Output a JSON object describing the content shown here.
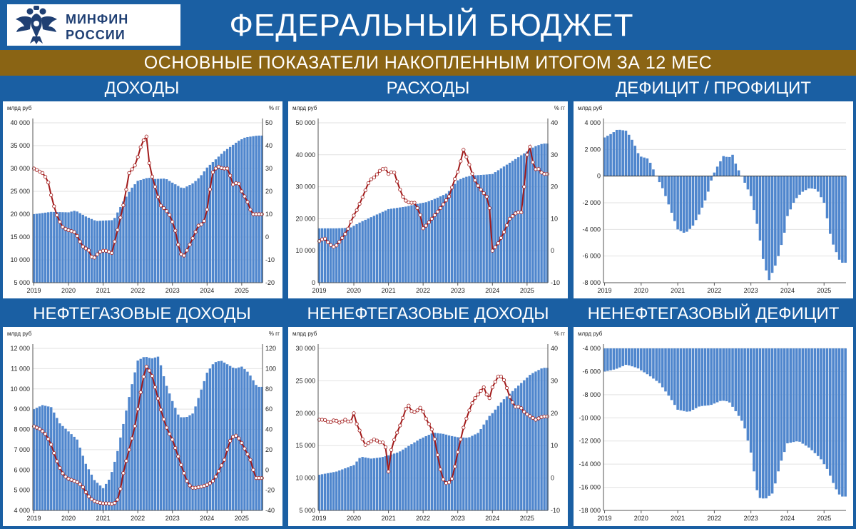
{
  "header": {
    "logo_text_line1": "МИНФИН",
    "logo_text_line2": "РОССИИ",
    "logo_icon": "double-headed-eagle-emblem",
    "title": "ФЕДЕРАЛЬНЫЙ БЮДЖЕТ",
    "subtitle": "ОСНОВНЫЕ ПОКАЗАТЕЛИ НАКОПЛЕННЫМ ИТОГОМ ЗА 12 МЕС"
  },
  "colors": {
    "background": "#1a5fa3",
    "subtitle_bar": "#8a6414",
    "bar": "#4f86cd",
    "line": "#a11a1a",
    "marker_fill": "#ffffff"
  },
  "chart_data": [
    {
      "id": "revenue",
      "type": "bar+line",
      "title": "ДОХОДЫ",
      "ylabel": "млрд руб",
      "y2label": "% гг",
      "ylim": [
        5000,
        40000
      ],
      "yticks": [
        5000,
        10000,
        15000,
        20000,
        25000,
        30000,
        35000,
        40000
      ],
      "y2lim": [
        -20,
        50
      ],
      "y2ticks": [
        -20,
        -10,
        0,
        10,
        20,
        30,
        40,
        50
      ],
      "x_start": 2019.0,
      "x_end": 2025.6,
      "year_labels": [
        "2019",
        "2020",
        "2021",
        "2022",
        "2023",
        "2024",
        "2025"
      ],
      "bars": {
        "t": [
          2019.0,
          2019.5,
          2020.0,
          2020.2,
          2020.5,
          2020.8,
          2021.0,
          2021.3,
          2021.6,
          2021.8,
          2022.0,
          2022.3,
          2022.5,
          2022.8,
          2023.0,
          2023.3,
          2023.6,
          2023.8,
          2024.0,
          2024.5,
          2024.9,
          2025.1,
          2025.45
        ],
        "v": [
          20000,
          20500,
          20400,
          20800,
          19500,
          18500,
          18600,
          18700,
          23000,
          25500,
          27300,
          28000,
          27700,
          27800,
          26900,
          25600,
          26800,
          28200,
          30200,
          33800,
          36000,
          36800,
          37200
        ]
      },
      "line": {
        "t": [
          2019.0,
          2019.25,
          2019.4,
          2019.55,
          2019.7,
          2019.85,
          2020.0,
          2020.2,
          2020.4,
          2020.6,
          2020.7,
          2020.8,
          2020.95,
          2021.1,
          2021.25,
          2021.4,
          2021.6,
          2021.75,
          2021.95,
          2022.05,
          2022.15,
          2022.25,
          2022.35,
          2022.5,
          2022.65,
          2022.8,
          2022.95,
          2023.1,
          2023.2,
          2023.3,
          2023.45,
          2023.6,
          2023.75,
          2023.9,
          2024.0,
          2024.15,
          2024.3,
          2024.45,
          2024.6,
          2024.75,
          2024.9,
          2025.0,
          2025.15,
          2025.3,
          2025.45
        ],
        "v": [
          30,
          28,
          25,
          15,
          8,
          4,
          3,
          2,
          -4,
          -6,
          -10,
          -8,
          -6,
          -6,
          -7,
          2,
          15,
          28,
          32,
          38,
          42,
          44,
          30,
          22,
          14,
          12,
          9,
          2,
          -6,
          -9,
          -5,
          0,
          5,
          6,
          12,
          28,
          31,
          30,
          30,
          23,
          24,
          20,
          16,
          10,
          10
        ]
      }
    },
    {
      "id": "expenditure",
      "type": "bar+line",
      "title": "РАСХОДЫ",
      "ylabel": "млрд руб",
      "y2label": "% гг",
      "ylim": [
        0,
        50000
      ],
      "yticks": [
        0,
        10000,
        20000,
        30000,
        40000,
        50000
      ],
      "y2lim": [
        -10,
        40
      ],
      "y2ticks": [
        -10,
        0,
        10,
        20,
        30,
        40
      ],
      "x_start": 2019.0,
      "x_end": 2025.6,
      "year_labels": [
        "2019",
        "2020",
        "2021",
        "2022",
        "2023",
        "2024",
        "2025"
      ],
      "bars": {
        "t": [
          2019.0,
          2019.5,
          2019.9,
          2020.2,
          2020.5,
          2020.8,
          2021.0,
          2021.5,
          2021.9,
          2022.1,
          2022.4,
          2022.7,
          2023.0,
          2023.2,
          2023.4,
          2023.8,
          2024.0,
          2024.5,
          2025.0,
          2025.2,
          2025.45
        ],
        "v": [
          17000,
          17000,
          17200,
          19000,
          20500,
          22000,
          23000,
          23800,
          24800,
          25200,
          26500,
          28000,
          32000,
          33000,
          33500,
          33800,
          34000,
          37500,
          41000,
          42500,
          43500
        ]
      },
      "line": {
        "t": [
          2019.0,
          2019.15,
          2019.3,
          2019.45,
          2019.6,
          2019.8,
          2019.95,
          2020.1,
          2020.3,
          2020.45,
          2020.6,
          2020.75,
          2020.9,
          2021.0,
          2021.15,
          2021.3,
          2021.45,
          2021.6,
          2021.75,
          2021.9,
          2022.0,
          2022.1,
          2022.25,
          2022.4,
          2022.55,
          2022.75,
          2022.9,
          2023.05,
          2023.15,
          2023.3,
          2023.45,
          2023.6,
          2023.75,
          2023.9,
          2024.0,
          2024.15,
          2024.3,
          2024.5,
          2024.7,
          2024.85,
          2025.0,
          2025.1,
          2025.2,
          2025.3,
          2025.45
        ],
        "v": [
          3,
          4,
          2,
          1,
          3,
          6,
          10,
          13,
          18,
          22,
          23,
          25,
          26,
          24,
          25,
          20,
          16,
          15,
          15,
          12,
          7,
          8,
          10,
          12,
          14,
          17,
          22,
          26,
          32,
          28,
          23,
          20,
          18,
          16,
          0,
          2,
          5,
          10,
          12,
          12,
          30,
          33,
          25,
          26,
          24
        ]
      }
    },
    {
      "id": "balance",
      "type": "bar",
      "title": "ДЕФИЦИТ / ПРОФИЦИТ",
      "ylabel": "млрд руб",
      "ylim": [
        -8000,
        4000
      ],
      "yticks": [
        -8000,
        -6000,
        -4000,
        -2000,
        0,
        2000,
        4000
      ],
      "x_start": 2019.0,
      "x_end": 2025.6,
      "year_labels": [
        "2019",
        "2020",
        "2021",
        "2022",
        "2023",
        "2024",
        "2025"
      ],
      "bars": {
        "t": [
          2019.0,
          2019.2,
          2019.35,
          2019.6,
          2019.8,
          2019.95,
          2020.2,
          2020.4,
          2020.6,
          2020.8,
          2021.0,
          2021.2,
          2021.4,
          2021.6,
          2021.8,
          2021.95,
          2022.1,
          2022.25,
          2022.4,
          2022.5,
          2022.6,
          2022.8,
          2023.0,
          2023.2,
          2023.35,
          2023.5,
          2023.7,
          2023.9,
          2024.0,
          2024.2,
          2024.4,
          2024.6,
          2024.8,
          2025.0,
          2025.2,
          2025.45
        ],
        "v": [
          2900,
          3200,
          3500,
          3400,
          2500,
          1500,
          1300,
          100,
          -1000,
          -2500,
          -4000,
          -4300,
          -3800,
          -2800,
          -1500,
          0,
          800,
          1500,
          1400,
          1600,
          800,
          -300,
          -1500,
          -4000,
          -6500,
          -7800,
          -6500,
          -4500,
          -3000,
          -1800,
          -1200,
          -900,
          -1000,
          -2000,
          -4800,
          -6500
        ]
      }
    },
    {
      "id": "oil-gas-revenue",
      "type": "bar+line",
      "title": "НЕФТЕГАЗОВЫЕ ДОХОДЫ",
      "ylabel": "млрд  руб",
      "y2label": "% гг",
      "ylim": [
        4000,
        12000
      ],
      "yticks": [
        4000,
        5000,
        6000,
        7000,
        8000,
        9000,
        10000,
        11000,
        12000
      ],
      "y2lim": [
        -40,
        120
      ],
      "y2ticks": [
        -40,
        -20,
        0,
        20,
        40,
        60,
        80,
        100,
        120
      ],
      "x_start": 2019.0,
      "x_end": 2025.6,
      "year_labels": [
        "2019",
        "2020",
        "2021",
        "2022",
        "2023",
        "2024",
        "2025"
      ],
      "bars": {
        "t": [
          2019.0,
          2019.25,
          2019.5,
          2019.75,
          2020.0,
          2020.25,
          2020.5,
          2020.75,
          2021.0,
          2021.2,
          2021.4,
          2021.6,
          2021.8,
          2022.0,
          2022.2,
          2022.4,
          2022.6,
          2022.8,
          2023.0,
          2023.2,
          2023.4,
          2023.6,
          2023.8,
          2024.0,
          2024.2,
          2024.4,
          2024.6,
          2024.8,
          2025.0,
          2025.2,
          2025.45
        ],
        "v": [
          9000,
          9200,
          9100,
          8300,
          7900,
          7500,
          6300,
          5500,
          5100,
          5600,
          6800,
          8400,
          10000,
          11400,
          11600,
          11500,
          11600,
          10300,
          9400,
          8600,
          8600,
          8800,
          9800,
          10800,
          11300,
          11400,
          11200,
          11000,
          11100,
          10800,
          10100
        ]
      },
      "line": {
        "t": [
          2019.0,
          2019.2,
          2019.35,
          2019.5,
          2019.65,
          2019.8,
          2019.95,
          2020.1,
          2020.25,
          2020.4,
          2020.55,
          2020.7,
          2020.85,
          2021.0,
          2021.15,
          2021.3,
          2021.45,
          2021.6,
          2021.75,
          2021.9,
          2022.05,
          2022.15,
          2022.25,
          2022.4,
          2022.55,
          2022.7,
          2022.85,
          2023.0,
          2023.15,
          2023.3,
          2023.45,
          2023.6,
          2023.75,
          2023.9,
          2024.05,
          2024.2,
          2024.35,
          2024.5,
          2024.65,
          2024.8,
          2024.95,
          2025.1,
          2025.25,
          2025.4
        ],
        "v": [
          43,
          40,
          35,
          25,
          10,
          -2,
          -8,
          -10,
          -12,
          -16,
          -25,
          -30,
          -32,
          -33,
          -33,
          -34,
          -28,
          0,
          20,
          40,
          70,
          90,
          102,
          95,
          75,
          55,
          40,
          30,
          15,
          0,
          -14,
          -18,
          -17,
          -16,
          -14,
          -10,
          0,
          10,
          28,
          35,
          30,
          20,
          10,
          -8
        ]
      }
    },
    {
      "id": "non-oil-gas-revenue",
      "type": "bar+line",
      "title": "НЕНЕФТЕГАЗОВЫЕ ДОХОДЫ",
      "ylabel": "млрд  руб",
      "y2label": "% гг",
      "ylim": [
        5000,
        30000
      ],
      "yticks": [
        5000,
        10000,
        15000,
        20000,
        25000,
        30000
      ],
      "y2lim": [
        -10,
        40
      ],
      "y2ticks": [
        -10,
        0,
        10,
        20,
        30,
        40
      ],
      "x_start": 2019.0,
      "x_end": 2025.6,
      "year_labels": [
        "2019",
        "2020",
        "2021",
        "2022",
        "2023",
        "2024",
        "2025"
      ],
      "bars": {
        "t": [
          2019.0,
          2019.5,
          2020.0,
          2020.2,
          2020.5,
          2020.8,
          2021.0,
          2021.3,
          2021.6,
          2021.9,
          2022.1,
          2022.3,
          2022.6,
          2022.8,
          2023.0,
          2023.3,
          2023.6,
          2023.9,
          2024.0,
          2024.3,
          2024.6,
          2024.9,
          2025.1,
          2025.45
        ],
        "v": [
          10500,
          11000,
          12000,
          13300,
          13000,
          13200,
          13500,
          14000,
          15000,
          16000,
          16500,
          17000,
          16800,
          16500,
          16300,
          16200,
          17000,
          19500,
          20000,
          22000,
          23500,
          25000,
          26000,
          27000
        ]
      },
      "line": {
        "t": [
          2019.0,
          2019.15,
          2019.3,
          2019.45,
          2019.6,
          2019.75,
          2019.9,
          2020.0,
          2020.1,
          2020.2,
          2020.3,
          2020.45,
          2020.6,
          2020.75,
          2020.9,
          2021.0,
          2021.1,
          2021.25,
          2021.4,
          2021.55,
          2021.7,
          2021.85,
          2021.95,
          2022.05,
          2022.15,
          2022.3,
          2022.4,
          2022.55,
          2022.7,
          2022.85,
          2023.0,
          2023.15,
          2023.3,
          2023.45,
          2023.6,
          2023.75,
          2023.9,
          2024.0,
          2024.1,
          2024.2,
          2024.35,
          2024.5,
          2024.65,
          2024.8,
          2024.95,
          2025.1,
          2025.25,
          2025.45
        ],
        "v": [
          18,
          18,
          17,
          18,
          17,
          18,
          17,
          20,
          16,
          14,
          10,
          11,
          12,
          11,
          11,
          2,
          10,
          14,
          18,
          23,
          20,
          21,
          22,
          19,
          17,
          14,
          8,
          0,
          -2,
          0,
          8,
          15,
          20,
          24,
          26,
          28,
          24,
          28,
          30,
          32,
          30,
          25,
          22,
          22,
          20,
          19,
          18,
          19
        ]
      }
    },
    {
      "id": "non-oil-gas-deficit",
      "type": "bar",
      "title": "НЕНЕФТЕГАЗОВЫЙ ДЕФИЦИТ",
      "ylabel": "млрд  руб",
      "ylim": [
        -18000,
        -4000
      ],
      "yticks": [
        -18000,
        -16000,
        -14000,
        -12000,
        -10000,
        -8000,
        -6000,
        -4000
      ],
      "x_start": 2019.0,
      "x_end": 2025.6,
      "year_labels": [
        "2019",
        "2020",
        "2021",
        "2022",
        "2023",
        "2024",
        "2025"
      ],
      "bars": {
        "t": [
          2019.0,
          2019.3,
          2019.6,
          2019.9,
          2020.2,
          2020.5,
          2020.8,
          2021.0,
          2021.3,
          2021.6,
          2021.9,
          2022.2,
          2022.4,
          2022.6,
          2022.8,
          2023.0,
          2023.2,
          2023.4,
          2023.6,
          2023.8,
          2024.0,
          2024.3,
          2024.6,
          2024.9,
          2025.1,
          2025.3,
          2025.45
        ],
        "v": [
          -6000,
          -5800,
          -5400,
          -5700,
          -6300,
          -7000,
          -8300,
          -9300,
          -9500,
          -9000,
          -8900,
          -8500,
          -8600,
          -9500,
          -10500,
          -13000,
          -16900,
          -17000,
          -16500,
          -14000,
          -12200,
          -12000,
          -12600,
          -13500,
          -14500,
          -16000,
          -16800
        ]
      }
    }
  ]
}
